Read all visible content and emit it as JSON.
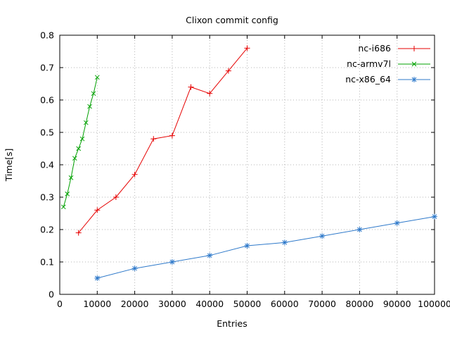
{
  "figure": {
    "background": "#ffffff",
    "text_color": "#000000"
  },
  "chart_data": {
    "type": "line",
    "title": "Clixon commit config",
    "xlabel": "Entries",
    "ylabel": "Time[s]",
    "xlim": [
      0,
      100000
    ],
    "ylim": [
      0,
      0.8
    ],
    "grid": "dotted",
    "legend_position": "top-right-inside",
    "x_ticks": [
      0,
      10000,
      20000,
      30000,
      40000,
      50000,
      60000,
      70000,
      80000,
      90000,
      100000
    ],
    "x_tick_labels": [
      "0",
      "10000",
      "20000",
      "30000",
      "40000",
      "50000",
      "60000",
      "70000",
      "80000",
      "90000",
      "100000"
    ],
    "y_ticks": [
      0,
      0.1,
      0.2,
      0.3,
      0.4,
      0.5,
      0.6,
      0.7,
      0.8
    ],
    "y_tick_labels": [
      "0",
      "0.1",
      "0.2",
      "0.3",
      "0.4",
      "0.5",
      "0.6",
      "0.7",
      "0.8"
    ],
    "series": [
      {
        "name": "nc-i686",
        "color": "#e60000",
        "marker": "plus",
        "x": [
          5000,
          10000,
          15000,
          20000,
          25000,
          30000,
          35000,
          40000,
          45000,
          50000
        ],
        "y": [
          0.19,
          0.26,
          0.3,
          0.37,
          0.48,
          0.49,
          0.64,
          0.62,
          0.69,
          0.76
        ]
      },
      {
        "name": "nc-armv7l",
        "color": "#00a000",
        "marker": "x",
        "x": [
          1000,
          2000,
          3000,
          4000,
          5000,
          6000,
          7000,
          8000,
          9000,
          10000
        ],
        "y": [
          0.27,
          0.31,
          0.36,
          0.42,
          0.45,
          0.48,
          0.53,
          0.58,
          0.62,
          0.67
        ]
      },
      {
        "name": "nc-x86_64",
        "color": "#2e79ca",
        "marker": "asterisk",
        "x": [
          10000,
          20000,
          30000,
          40000,
          50000,
          60000,
          70000,
          80000,
          90000,
          100000
        ],
        "y": [
          0.05,
          0.08,
          0.1,
          0.12,
          0.15,
          0.16,
          0.18,
          0.2,
          0.22,
          0.24
        ]
      }
    ]
  }
}
